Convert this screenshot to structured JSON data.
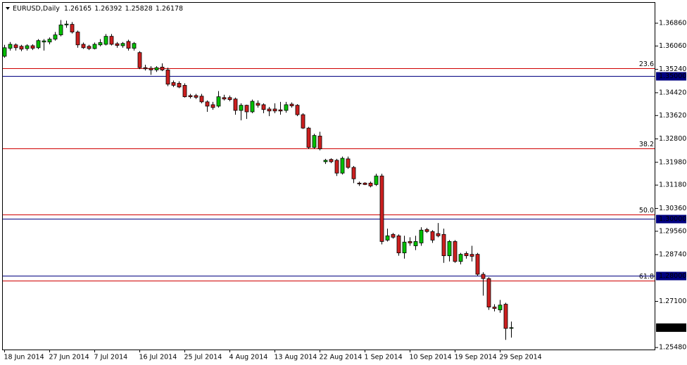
{
  "chart_data": {
    "type": "candlestick",
    "title": "EURUSD,Daily",
    "categories": [
      "18 Jun 2014",
      null,
      null,
      null,
      null,
      null,
      null,
      null,
      "27 Jun 2014",
      null,
      null,
      null,
      null,
      null,
      null,
      null,
      "7 Jul 2014",
      null,
      null,
      null,
      null,
      null,
      null,
      null,
      "16 Jul 2014",
      null,
      null,
      null,
      null,
      null,
      null,
      null,
      "25 Jul 2014",
      null,
      null,
      null,
      null,
      null,
      null,
      null,
      "4 Aug 2014",
      null,
      null,
      null,
      null,
      null,
      null,
      null,
      "13 Aug 2014",
      null,
      null,
      null,
      null,
      null,
      null,
      null,
      "22 Aug 2014",
      null,
      null,
      null,
      null,
      null,
      null,
      null,
      "1 Sep 2014",
      null,
      null,
      null,
      null,
      null,
      null,
      null,
      "10 Sep 2014",
      null,
      null,
      null,
      null,
      null,
      null,
      null,
      "19 Sep 2014",
      null,
      null,
      null,
      null,
      null,
      null,
      null,
      "29 Sep 2014",
      null,
      null
    ],
    "open": [
      1.357,
      1.3598,
      1.361,
      1.3605,
      1.3597,
      1.3607,
      1.36,
      1.362,
      1.362,
      1.363,
      1.3645,
      1.368,
      1.3682,
      1.3655,
      1.3612,
      1.3605,
      1.3597,
      1.361,
      1.3612,
      1.364,
      1.3614,
      1.3607,
      1.3622,
      1.3598,
      1.3583,
      1.353,
      1.3528,
      1.3522,
      1.3532,
      1.3522,
      1.3478,
      1.3475,
      1.3468,
      1.3432,
      1.3432,
      1.343,
      1.341,
      1.34,
      1.3395,
      1.3425,
      1.3425,
      1.342,
      1.338,
      1.3398,
      1.3375,
      1.3405,
      1.34,
      1.3385,
      1.3385,
      1.3382,
      1.338,
      1.3402,
      1.3398,
      1.3365,
      1.3318,
      1.325,
      1.329,
      1.32,
      1.3208,
      1.3205,
      1.316,
      1.321,
      1.318,
      1.3125,
      1.3125,
      1.3125,
      1.312,
      1.315,
      1.2925,
      1.2945,
      1.294,
      1.288,
      1.292,
      1.2905,
      1.2915,
      1.2962,
      1.2955,
      1.2948,
      1.2945,
      1.287,
      1.292,
      1.285,
      1.2878,
      1.2875,
      1.2875,
      1.2805,
      1.279,
      1.269,
      1.268,
      1.27,
      1.26165
    ],
    "high": [
      1.361,
      1.362,
      1.3615,
      1.361,
      1.3612,
      1.3612,
      1.363,
      1.363,
      1.3636,
      1.3655,
      1.3697,
      1.3695,
      1.369,
      1.366,
      1.3618,
      1.361,
      1.3618,
      1.363,
      1.3648,
      1.3648,
      1.362,
      1.362,
      1.3628,
      1.362,
      1.3588,
      1.354,
      1.3535,
      1.3535,
      1.3545,
      1.353,
      1.3485,
      1.3482,
      1.3475,
      1.3438,
      1.3438,
      1.3438,
      1.3415,
      1.341,
      1.3448,
      1.3435,
      1.3432,
      1.3425,
      1.3405,
      1.34,
      1.3418,
      1.3415,
      1.3405,
      1.3392,
      1.3405,
      1.341,
      1.341,
      1.3408,
      1.3402,
      1.337,
      1.3322,
      1.3298,
      1.3305,
      1.321,
      1.3212,
      1.321,
      1.3218,
      1.3218,
      1.3185,
      1.313,
      1.3128,
      1.313,
      1.3158,
      1.3158,
      1.2965,
      1.295,
      1.2945,
      1.294,
      1.2935,
      1.294,
      1.297,
      1.2968,
      1.296,
      1.2985,
      1.2965,
      1.2925,
      1.2925,
      1.288,
      1.2885,
      1.2905,
      1.288,
      1.2812,
      1.2795,
      1.27,
      1.2715,
      1.2705,
      1.26392
    ],
    "low": [
      1.3565,
      1.359,
      1.359,
      1.3588,
      1.359,
      1.3592,
      1.3595,
      1.359,
      1.3612,
      1.3625,
      1.364,
      1.367,
      1.365,
      1.36,
      1.3596,
      1.3592,
      1.3594,
      1.3605,
      1.3608,
      1.3608,
      1.36,
      1.36,
      1.359,
      1.359,
      1.3525,
      1.352,
      1.3505,
      1.3515,
      1.3518,
      1.3465,
      1.3462,
      1.3458,
      1.3425,
      1.3422,
      1.342,
      1.3405,
      1.3375,
      1.3382,
      1.339,
      1.3415,
      1.3412,
      1.3365,
      1.3345,
      1.335,
      1.337,
      1.339,
      1.337,
      1.336,
      1.337,
      1.3365,
      1.3372,
      1.339,
      1.336,
      1.3315,
      1.3245,
      1.3245,
      1.324,
      1.3192,
      1.3195,
      1.315,
      1.3155,
      1.3175,
      1.3125,
      1.3115,
      1.3118,
      1.311,
      1.3115,
      1.291,
      1.292,
      1.293,
      1.287,
      1.286,
      1.2905,
      1.289,
      1.2905,
      1.295,
      1.2915,
      1.2935,
      1.2845,
      1.285,
      1.2845,
      1.284,
      1.286,
      1.285,
      1.28,
      1.273,
      1.268,
      1.2675,
      1.267,
      1.2575,
      1.25828
    ],
    "close": [
      1.36,
      1.3612,
      1.36,
      1.3595,
      1.3607,
      1.3598,
      1.3625,
      1.3624,
      1.363,
      1.3645,
      1.368,
      1.3683,
      1.3655,
      1.361,
      1.36,
      1.3597,
      1.3612,
      1.3618,
      1.364,
      1.3612,
      1.3608,
      1.3615,
      1.3598,
      1.3615,
      1.353,
      1.3526,
      1.3522,
      1.353,
      1.3522,
      1.3472,
      1.3468,
      1.3462,
      1.3428,
      1.3428,
      1.3426,
      1.341,
      1.3395,
      1.339,
      1.3428,
      1.342,
      1.3418,
      1.338,
      1.3398,
      1.3375,
      1.3412,
      1.3398,
      1.3383,
      1.3378,
      1.3378,
      1.3378,
      1.34,
      1.3396,
      1.3365,
      1.3318,
      1.325,
      1.3292,
      1.3245,
      1.3205,
      1.32,
      1.316,
      1.3212,
      1.318,
      1.314,
      1.3122,
      1.312,
      1.3115,
      1.315,
      1.292,
      1.294,
      1.2935,
      1.288,
      1.2918,
      1.2915,
      1.292,
      1.296,
      1.2955,
      1.2925,
      1.294,
      1.287,
      1.292,
      1.285,
      1.2875,
      1.287,
      1.2868,
      1.2805,
      1.279,
      1.269,
      1.2685,
      1.2697,
      1.2615,
      1.26178
    ],
    "up_color": "#00c000",
    "down_color": "#cc1f1f",
    "ylim": [
      1.2541,
      1.376
    ],
    "yticks": [
      {
        "value": 1.3686,
        "label": "1.36860"
      },
      {
        "value": 1.3606,
        "label": "1.36060"
      },
      {
        "value": 1.3524,
        "label": "1.35240"
      },
      {
        "value": 1.3442,
        "label": "1.34420"
      },
      {
        "value": 1.3362,
        "label": "1.33620"
      },
      {
        "value": 1.328,
        "label": "1.32800"
      },
      {
        "value": 1.3198,
        "label": "1.31980"
      },
      {
        "value": 1.3118,
        "label": "1.31180"
      },
      {
        "value": 1.3036,
        "label": "1.30360"
      },
      {
        "value": 1.2956,
        "label": "1.29560"
      },
      {
        "value": 1.2874,
        "label": "1.28740"
      },
      {
        "value": 1.271,
        "label": "1.27100"
      },
      {
        "value": 1.2548,
        "label": "1.25480"
      }
    ],
    "levels": [
      {
        "value": 1.35,
        "label": "1.35000"
      },
      {
        "value": 1.3,
        "label": "1.30000"
      },
      {
        "value": 1.28,
        "label": "1.28000"
      }
    ],
    "level_color": "#000080",
    "fib_levels": [
      {
        "value": 1.3528,
        "label": "23.6"
      },
      {
        "value": 1.3246,
        "label": "38.2"
      },
      {
        "value": 1.3014,
        "label": "50.0"
      },
      {
        "value": 1.2784,
        "label": "61.8"
      }
    ],
    "fib_color": "#d00000"
  }
}
